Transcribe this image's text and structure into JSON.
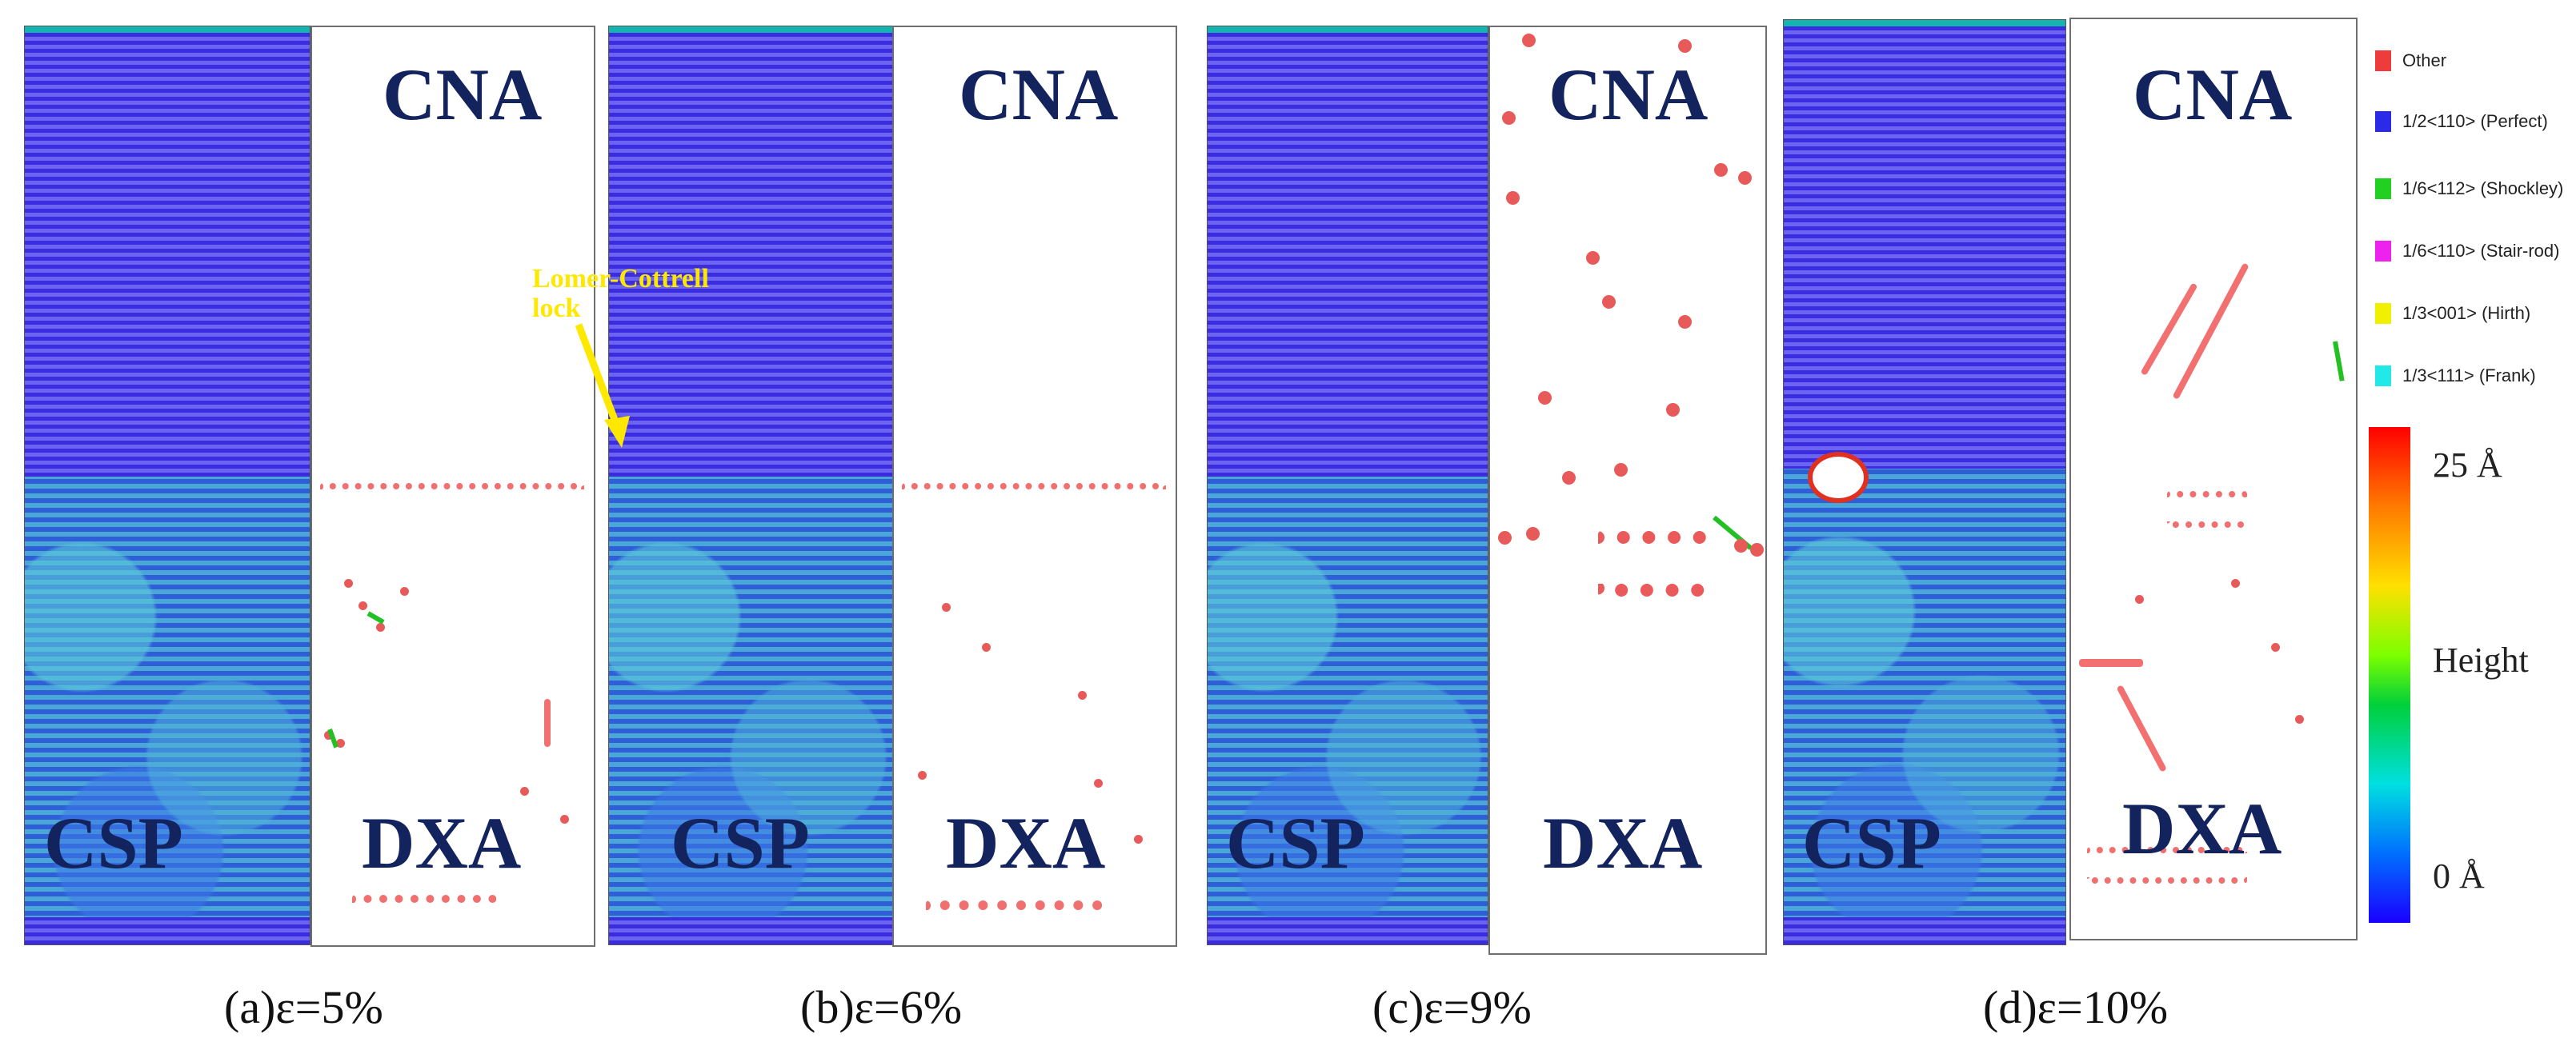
{
  "panels": [
    {
      "caption": "(a)ε=5%",
      "cna": "CNA",
      "csp": "CSP",
      "dxa": "DXA"
    },
    {
      "caption": "(b)ε=6%",
      "cna": "CNA",
      "csp": "CSP",
      "dxa": "DXA",
      "annotation": "Lomer-Cottrell lock"
    },
    {
      "caption": "(c)ε=9%",
      "cna": "CNA",
      "csp": "CSP",
      "dxa": "DXA"
    },
    {
      "caption": "(d)ε=10%",
      "cna": "CNA",
      "csp": "CSP",
      "dxa": "DXA"
    }
  ],
  "legend": {
    "items": [
      {
        "label": "Other",
        "color": "#ee3b3b"
      },
      {
        "label": "1/2<110> (Perfect)",
        "color": "#2a2ae8"
      },
      {
        "label": "1/6<112> (Shockley)",
        "color": "#22d022"
      },
      {
        "label": "1/6<110> (Stair-rod)",
        "color": "#ee22ee"
      },
      {
        "label": "1/3<001> (Hirth)",
        "color": "#f0f000"
      },
      {
        "label": "1/3<111> (Frank)",
        "color": "#22e8e8"
      }
    ],
    "colorbar": {
      "max": "25 Å",
      "mid": "Height",
      "min": "0 Å"
    }
  }
}
